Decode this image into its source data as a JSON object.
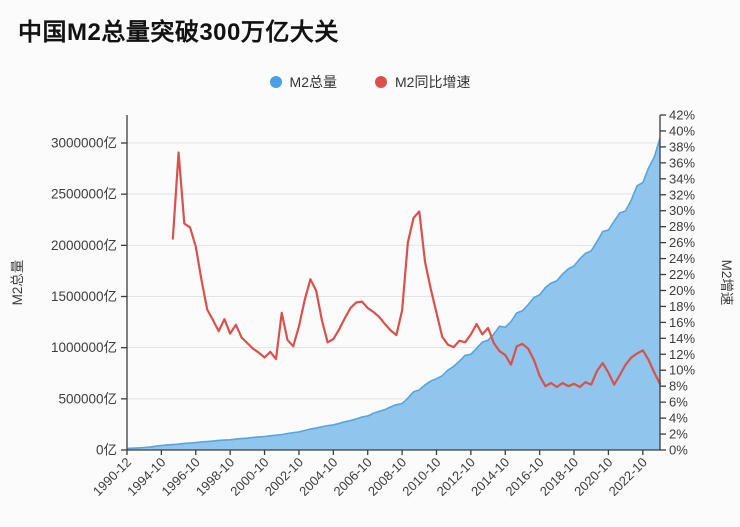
{
  "title": "中国M2总量突破300万亿大关",
  "legend": {
    "items": [
      {
        "label": "M2总量",
        "color": "#4aa0e6"
      },
      {
        "label": "M2同比增速",
        "color": "#de4f4a"
      }
    ]
  },
  "colors": {
    "background": "#fbfbfb",
    "title_text": "#121212",
    "axis_line": "#3c3c3c",
    "axis_text": "#3d3d3d",
    "gridline": "#e4e4e4",
    "area_fill": "#8ac2ec",
    "area_edge": "#58a5dc",
    "growth_line": "#d8514d"
  },
  "chart_data": {
    "type": "area",
    "combo": [
      "area",
      "line"
    ],
    "title": "中国M2总量突破300万亿大关",
    "x_axis": {
      "labels": [
        "1990-12",
        "1994-10",
        "1996-10",
        "1998-10",
        "2000-10",
        "2002-10",
        "2004-10",
        "2006-10",
        "2008-10",
        "2010-10",
        "2012-10",
        "2014-10",
        "2016-10",
        "2018-10",
        "2020-10",
        "2022-10"
      ],
      "label_every_n_points": 6,
      "label_rotation_deg": -45
    },
    "y_left": {
      "name": "M2总量",
      "unit": "亿",
      "min": 0,
      "labeled_max": 3000000,
      "tick_step": 500000,
      "tick_labels": [
        "0亿",
        "500000亿",
        "1000000亿",
        "1500000亿",
        "2000000亿",
        "2500000亿",
        "3000000亿"
      ]
    },
    "y_right": {
      "name": "M2增速",
      "unit": "%",
      "min": 0,
      "max": 42,
      "tick_step": 2
    },
    "grid": "horizontal-only",
    "legend_position": "top-center",
    "series": [
      {
        "name": "M2总量",
        "type": "area",
        "axis": "left",
        "point_field": 1
      },
      {
        "name": "M2同比增速",
        "type": "line",
        "axis": "right",
        "point_field": 2
      }
    ],
    "points": [
      [
        "1990-12",
        15300,
        null
      ],
      [
        "1991-08",
        17900,
        null
      ],
      [
        "1992-03",
        20600,
        null
      ],
      [
        "1992-11",
        24300,
        null
      ],
      [
        "1993-06",
        28700,
        null
      ],
      [
        "1994-02",
        36900,
        null
      ],
      [
        "1994-10",
        43900,
        null
      ],
      [
        "1995-02",
        49200,
        null
      ],
      [
        "1995-06",
        53500,
        26.5
      ],
      [
        "1995-10",
        57800,
        37.3
      ],
      [
        "1996-02",
        63800,
        28.4
      ],
      [
        "1996-06",
        68400,
        27.9
      ],
      [
        "1996-10",
        72700,
        25.5
      ],
      [
        "1997-02",
        78900,
        21.3
      ],
      [
        "1997-06",
        83100,
        17.6
      ],
      [
        "1997-10",
        87200,
        16.3
      ],
      [
        "1998-02",
        93200,
        14.9
      ],
      [
        "1998-06",
        96600,
        16.4
      ],
      [
        "1998-10",
        99800,
        14.6
      ],
      [
        "1999-02",
        106800,
        15.7
      ],
      [
        "1999-06",
        111500,
        14.1
      ],
      [
        "1999-10",
        115700,
        13.4
      ],
      [
        "2000-02",
        123100,
        12.7
      ],
      [
        "2000-06",
        127700,
        12.2
      ],
      [
        "2000-10",
        131900,
        11.6
      ],
      [
        "2001-02",
        139300,
        12.3
      ],
      [
        "2001-06",
        144900,
        11.4
      ],
      [
        "2001-10",
        150300,
        17.2
      ],
      [
        "2002-02",
        161100,
        13.8
      ],
      [
        "2002-06",
        169700,
        13.0
      ],
      [
        "2002-10",
        176800,
        15.5
      ],
      [
        "2003-02",
        190800,
        18.8
      ],
      [
        "2003-06",
        204900,
        21.4
      ],
      [
        "2003-10",
        214700,
        20.0
      ],
      [
        "2004-02",
        227100,
        16.3
      ],
      [
        "2004-06",
        238000,
        13.5
      ],
      [
        "2004-10",
        244800,
        13.9
      ],
      [
        "2005-02",
        259600,
        15.1
      ],
      [
        "2005-06",
        275900,
        16.5
      ],
      [
        "2005-10",
        287600,
        17.8
      ],
      [
        "2006-02",
        304500,
        18.5
      ],
      [
        "2006-06",
        322800,
        18.6
      ],
      [
        "2006-10",
        332700,
        17.8
      ],
      [
        "2007-02",
        358600,
        17.3
      ],
      [
        "2007-06",
        377800,
        16.7
      ],
      [
        "2007-10",
        394800,
        15.8
      ],
      [
        "2008-02",
        421000,
        15.0
      ],
      [
        "2008-06",
        443100,
        14.4
      ],
      [
        "2008-10",
        453400,
        17.5
      ],
      [
        "2009-02",
        506700,
        26.0
      ],
      [
        "2009-06",
        568900,
        29.1
      ],
      [
        "2009-10",
        586600,
        29.9
      ],
      [
        "2010-02",
        636100,
        23.6
      ],
      [
        "2010-06",
        673900,
        20.2
      ],
      [
        "2010-10",
        696500,
        17.2
      ],
      [
        "2011-02",
        725300,
        14.2
      ],
      [
        "2011-06",
        780800,
        13.2
      ],
      [
        "2011-10",
        817000,
        12.9
      ],
      [
        "2012-02",
        867300,
        13.7
      ],
      [
        "2012-06",
        925000,
        13.5
      ],
      [
        "2012-10",
        934800,
        14.5
      ],
      [
        "2013-02",
        993600,
        15.8
      ],
      [
        "2013-06",
        1054400,
        14.5
      ],
      [
        "2013-10",
        1072300,
        15.3
      ],
      [
        "2014-02",
        1132500,
        13.4
      ],
      [
        "2014-06",
        1209600,
        12.4
      ],
      [
        "2014-10",
        1199600,
        11.9
      ],
      [
        "2015-02",
        1254200,
        10.7
      ],
      [
        "2015-06",
        1339200,
        13.0
      ],
      [
        "2015-10",
        1360500,
        13.3
      ],
      [
        "2016-02",
        1420600,
        12.7
      ],
      [
        "2016-06",
        1490500,
        11.3
      ],
      [
        "2016-10",
        1516400,
        9.3
      ],
      [
        "2017-02",
        1586700,
        8.0
      ],
      [
        "2017-06",
        1631200,
        8.4
      ],
      [
        "2017-10",
        1653400,
        7.9
      ],
      [
        "2018-02",
        1718100,
        8.4
      ],
      [
        "2018-06",
        1770200,
        8.0
      ],
      [
        "2018-10",
        1797600,
        8.3
      ],
      [
        "2019-02",
        1867400,
        7.9
      ],
      [
        "2019-06",
        1921400,
        8.5
      ],
      [
        "2019-10",
        1946400,
        8.2
      ],
      [
        "2020-02",
        2035500,
        9.9
      ],
      [
        "2020-06",
        2134900,
        10.9
      ],
      [
        "2020-10",
        2149700,
        9.7
      ],
      [
        "2021-02",
        2235600,
        8.2
      ],
      [
        "2021-06",
        2316800,
        9.4
      ],
      [
        "2021-10",
        2336500,
        10.7
      ],
      [
        "2022-02",
        2444800,
        11.6
      ],
      [
        "2022-06",
        2581400,
        12.1
      ],
      [
        "2022-10",
        2612900,
        12.5
      ],
      [
        "2023-02",
        2756000,
        11.3
      ],
      [
        "2023-08",
        2862600,
        9.7
      ],
      [
        "2024-03",
        3048000,
        8.3
      ]
    ]
  }
}
